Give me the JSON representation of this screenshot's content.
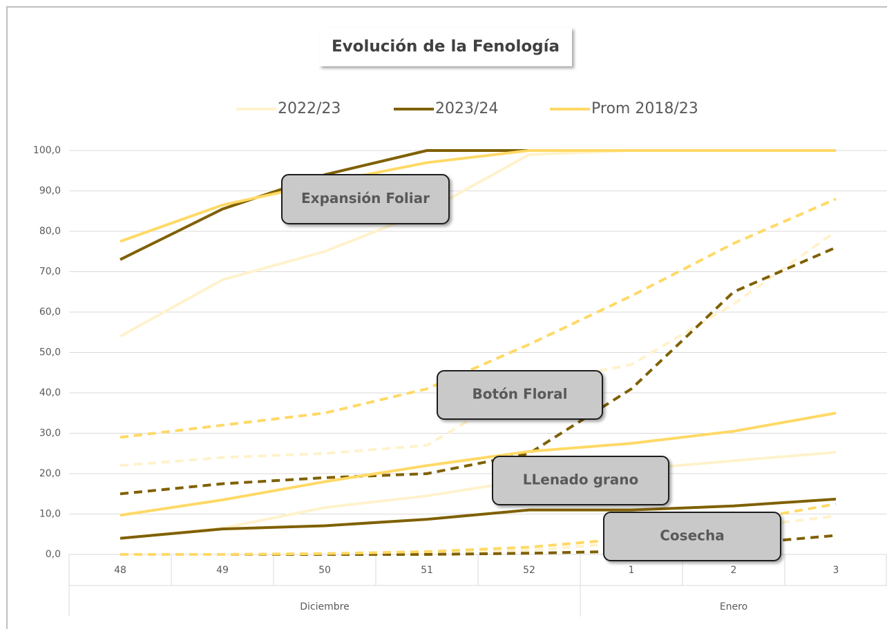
{
  "chart_data": {
    "type": "line",
    "title": "Evolución  de la Fenología",
    "categories": [
      "48",
      "49",
      "50",
      "51",
      "52",
      "1",
      "2",
      "3"
    ],
    "x_groups": [
      {
        "label": "Diciembre",
        "count": 5
      },
      {
        "label": "Enero",
        "count": 3
      }
    ],
    "ylim": [
      0,
      100
    ],
    "yticks": [
      {
        "value": 0,
        "label": "0,0"
      },
      {
        "value": 10,
        "label": "10,0"
      },
      {
        "value": 20,
        "label": "20,0"
      },
      {
        "value": 30,
        "label": "30,0"
      },
      {
        "value": 40,
        "label": "40,0"
      },
      {
        "value": 50,
        "label": "50,0"
      },
      {
        "value": 60,
        "label": "60,0"
      },
      {
        "value": 70,
        "label": "70,0"
      },
      {
        "value": 80,
        "label": "80,0"
      },
      {
        "value": 90,
        "label": "90,0"
      },
      {
        "value": 100,
        "label": "100,0"
      }
    ],
    "grid": true,
    "legend": "top",
    "stages": [
      "Expansión Foliar",
      "Botón Floral",
      "LLenado grano",
      "Cosecha"
    ],
    "line_styles": [
      "solid",
      "dashed",
      "solid",
      "dashed"
    ],
    "series": [
      {
        "name": "2022/23",
        "color": "#fff2cc",
        "lines": [
          [
            54,
            68,
            75,
            85,
            99,
            100,
            100,
            100
          ],
          [
            22,
            24,
            25,
            27,
            42,
            47,
            62,
            80
          ],
          [
            4,
            6.5,
            11.6,
            14.5,
            18.5,
            21,
            23.2,
            25.3
          ],
          [
            0,
            0,
            0,
            0.3,
            1,
            3,
            6.5,
            9.5
          ]
        ]
      },
      {
        "name": "2023/24",
        "color": "#7f6000",
        "lines": [
          [
            73,
            85.5,
            94,
            100,
            100,
            100,
            100,
            100
          ],
          [
            15,
            17.5,
            19,
            20,
            25,
            41,
            65,
            76
          ],
          [
            4,
            6.3,
            7.1,
            8.7,
            11,
            11,
            12,
            13.7
          ],
          [
            0,
            0,
            0,
            0,
            0.3,
            0.8,
            2.5,
            4.7
          ]
        ]
      },
      {
        "name": "Prom 2018/23",
        "color": "#ffd966",
        "lines": [
          [
            77.5,
            86.5,
            92,
            97,
            100,
            100,
            100,
            100
          ],
          [
            29,
            32,
            35,
            41,
            52,
            64,
            77,
            88
          ],
          [
            9.7,
            13.5,
            18,
            22,
            25.5,
            27.5,
            30.5,
            35
          ],
          [
            0,
            0,
            0.2,
            0.7,
            1.8,
            4,
            8,
            12.5
          ]
        ]
      }
    ]
  }
}
